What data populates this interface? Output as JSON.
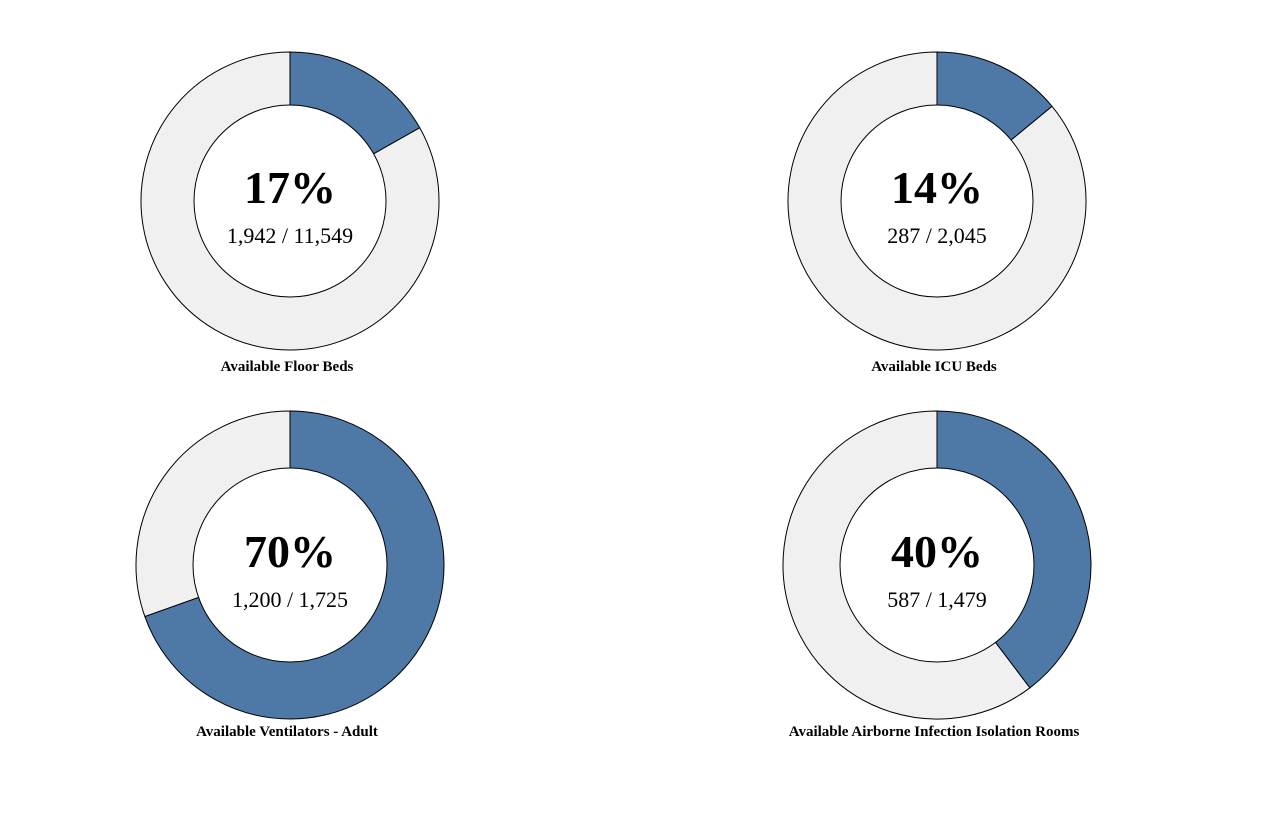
{
  "colors": {
    "available": "#4e78a6",
    "remaining": "#f0f0f0",
    "stroke": "#000000",
    "center": "#ffffff"
  },
  "chart_data": [
    {
      "type": "pie",
      "title": "Available Floor Beds",
      "value": 1942,
      "total": 11549,
      "percent_label": "17%",
      "count_label": "1,942 / 11,549"
    },
    {
      "type": "pie",
      "title": "Available ICU Beds",
      "value": 287,
      "total": 2045,
      "percent_label": "14%",
      "count_label": "287 / 2,045"
    },
    {
      "type": "pie",
      "title": "Available Ventilators - Adult",
      "value": 1200,
      "total": 1725,
      "percent_label": "70%",
      "count_label": "1,200 / 1,725"
    },
    {
      "type": "pie",
      "title": "Available Airborne Infection Isolation Rooms",
      "value": 587,
      "total": 1479,
      "percent_label": "40%",
      "count_label": "587 / 1,479"
    }
  ]
}
